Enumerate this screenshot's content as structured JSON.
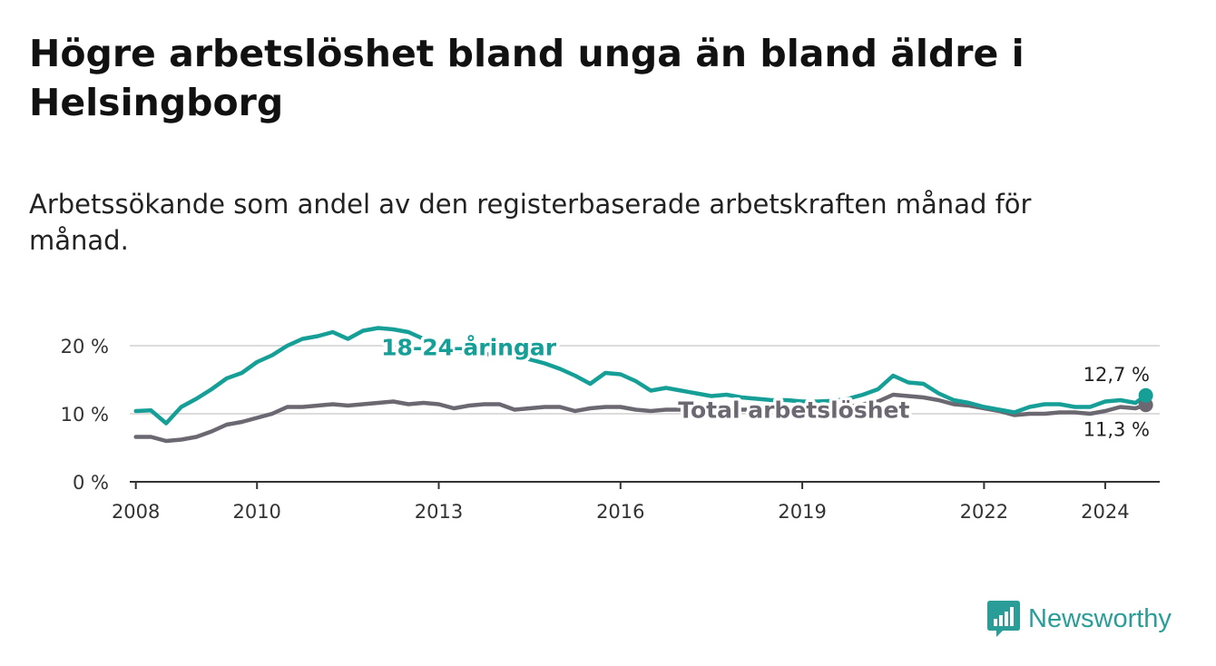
{
  "title": "Högre arbetslöshet bland unga än bland äldre i Helsingborg",
  "subtitle": "Arbetssökande som andel av den registerbaserade arbetskraften månad för månad.",
  "brand": {
    "name": "Newsworthy",
    "icon": "newsworthy-logo-icon",
    "color": "#2a9d99"
  },
  "chart_data": {
    "type": "line",
    "title": "Högre arbetslöshet bland unga än bland äldre i Helsingborg",
    "xlabel": "",
    "ylabel": "",
    "xlim": [
      2007.9,
      2024.9
    ],
    "ylim": [
      0,
      20
    ],
    "grid": true,
    "x_ticks": [
      {
        "value": 2008,
        "label": "2008"
      },
      {
        "value": 2010,
        "label": "2010"
      },
      {
        "value": 2013,
        "label": "2013"
      },
      {
        "value": 2016,
        "label": "2016"
      },
      {
        "value": 2019,
        "label": "2019"
      },
      {
        "value": 2022,
        "label": "2022"
      },
      {
        "value": 2024,
        "label": "2024"
      }
    ],
    "y_ticks": [
      {
        "value": 0,
        "label": "0 %"
      },
      {
        "value": 10,
        "label": "10 %"
      },
      {
        "value": 20,
        "label": "20 %"
      }
    ],
    "series": [
      {
        "name": "18-24-åringar",
        "label": "18-24-åringar",
        "color": "#159f97",
        "end_label": "12,7 %",
        "points": [
          [
            2008,
            10.4
          ],
          [
            2008.25,
            10.5
          ],
          [
            2008.5,
            8.6
          ],
          [
            2008.75,
            11.0
          ],
          [
            2009,
            12.2
          ],
          [
            2009.25,
            13.6
          ],
          [
            2009.5,
            15.2
          ],
          [
            2009.75,
            16.0
          ],
          [
            2010,
            17.6
          ],
          [
            2010.25,
            18.6
          ],
          [
            2010.5,
            20.0
          ],
          [
            2010.75,
            21.0
          ],
          [
            2011,
            21.4
          ],
          [
            2011.25,
            22.0
          ],
          [
            2011.5,
            21.0
          ],
          [
            2011.75,
            22.2
          ],
          [
            2012,
            22.6
          ],
          [
            2012.25,
            22.4
          ],
          [
            2012.5,
            22.0
          ],
          [
            2012.75,
            21.0
          ],
          [
            2013,
            20.0
          ],
          [
            2013.25,
            19.4
          ],
          [
            2013.5,
            18.8
          ],
          [
            2013.75,
            18.8
          ],
          [
            2014,
            18.6
          ],
          [
            2014.25,
            18.4
          ],
          [
            2014.5,
            18.0
          ],
          [
            2014.75,
            17.4
          ],
          [
            2015,
            16.6
          ],
          [
            2015.25,
            15.6
          ],
          [
            2015.5,
            14.4
          ],
          [
            2015.75,
            16.0
          ],
          [
            2016,
            15.8
          ],
          [
            2016.25,
            14.8
          ],
          [
            2016.5,
            13.4
          ],
          [
            2016.75,
            13.8
          ],
          [
            2017,
            13.4
          ],
          [
            2017.25,
            13.0
          ],
          [
            2017.5,
            12.6
          ],
          [
            2017.75,
            12.8
          ],
          [
            2018,
            12.4
          ],
          [
            2018.25,
            12.2
          ],
          [
            2018.5,
            12.0
          ],
          [
            2018.75,
            12.0
          ],
          [
            2019,
            11.8
          ],
          [
            2019.25,
            11.8
          ],
          [
            2019.5,
            11.9
          ],
          [
            2019.75,
            12.2
          ],
          [
            2020,
            12.8
          ],
          [
            2020.25,
            13.6
          ],
          [
            2020.5,
            15.6
          ],
          [
            2020.75,
            14.6
          ],
          [
            2021,
            14.4
          ],
          [
            2021.25,
            13.0
          ],
          [
            2021.5,
            12.0
          ],
          [
            2021.75,
            11.6
          ],
          [
            2022,
            11.0
          ],
          [
            2022.25,
            10.6
          ],
          [
            2022.5,
            10.2
          ],
          [
            2022.75,
            11.0
          ],
          [
            2023,
            11.4
          ],
          [
            2023.25,
            11.4
          ],
          [
            2023.5,
            11.0
          ],
          [
            2023.75,
            11.0
          ],
          [
            2024,
            11.8
          ],
          [
            2024.25,
            12.0
          ],
          [
            2024.5,
            11.6
          ],
          [
            2024.67,
            12.7
          ]
        ]
      },
      {
        "name": "Total arbetslöshet",
        "label": "Total arbetslöshet",
        "color": "#6b6871",
        "end_label": "11,3 %",
        "points": [
          [
            2008,
            6.6
          ],
          [
            2008.25,
            6.6
          ],
          [
            2008.5,
            6.0
          ],
          [
            2008.75,
            6.2
          ],
          [
            2009,
            6.6
          ],
          [
            2009.25,
            7.4
          ],
          [
            2009.5,
            8.4
          ],
          [
            2009.75,
            8.8
          ],
          [
            2010,
            9.4
          ],
          [
            2010.25,
            10.0
          ],
          [
            2010.5,
            11.0
          ],
          [
            2010.75,
            11.0
          ],
          [
            2011,
            11.2
          ],
          [
            2011.25,
            11.4
          ],
          [
            2011.5,
            11.2
          ],
          [
            2011.75,
            11.4
          ],
          [
            2012,
            11.6
          ],
          [
            2012.25,
            11.8
          ],
          [
            2012.5,
            11.4
          ],
          [
            2012.75,
            11.6
          ],
          [
            2013,
            11.4
          ],
          [
            2013.25,
            10.8
          ],
          [
            2013.5,
            11.2
          ],
          [
            2013.75,
            11.4
          ],
          [
            2014,
            11.4
          ],
          [
            2014.25,
            10.6
          ],
          [
            2014.5,
            10.8
          ],
          [
            2014.75,
            11.0
          ],
          [
            2015,
            11.0
          ],
          [
            2015.25,
            10.4
          ],
          [
            2015.5,
            10.8
          ],
          [
            2015.75,
            11.0
          ],
          [
            2016,
            11.0
          ],
          [
            2016.25,
            10.6
          ],
          [
            2016.5,
            10.4
          ],
          [
            2016.75,
            10.6
          ],
          [
            2017,
            10.6
          ],
          [
            2017.25,
            10.6
          ],
          [
            2017.5,
            10.8
          ],
          [
            2017.75,
            10.8
          ],
          [
            2018,
            10.6
          ],
          [
            2018.25,
            10.6
          ],
          [
            2018.5,
            10.6
          ],
          [
            2018.75,
            10.6
          ],
          [
            2019,
            10.6
          ],
          [
            2019.25,
            10.6
          ],
          [
            2019.5,
            10.8
          ],
          [
            2019.75,
            11.0
          ],
          [
            2020,
            11.4
          ],
          [
            2020.25,
            11.8
          ],
          [
            2020.5,
            12.8
          ],
          [
            2020.75,
            12.6
          ],
          [
            2021,
            12.4
          ],
          [
            2021.25,
            12.0
          ],
          [
            2021.5,
            11.4
          ],
          [
            2021.75,
            11.2
          ],
          [
            2022,
            10.8
          ],
          [
            2022.25,
            10.4
          ],
          [
            2022.5,
            9.8
          ],
          [
            2022.75,
            10.0
          ],
          [
            2023,
            10.0
          ],
          [
            2023.25,
            10.2
          ],
          [
            2023.5,
            10.2
          ],
          [
            2023.75,
            10.0
          ],
          [
            2024,
            10.4
          ],
          [
            2024.25,
            11.0
          ],
          [
            2024.5,
            10.8
          ],
          [
            2024.67,
            11.3
          ]
        ]
      }
    ]
  }
}
